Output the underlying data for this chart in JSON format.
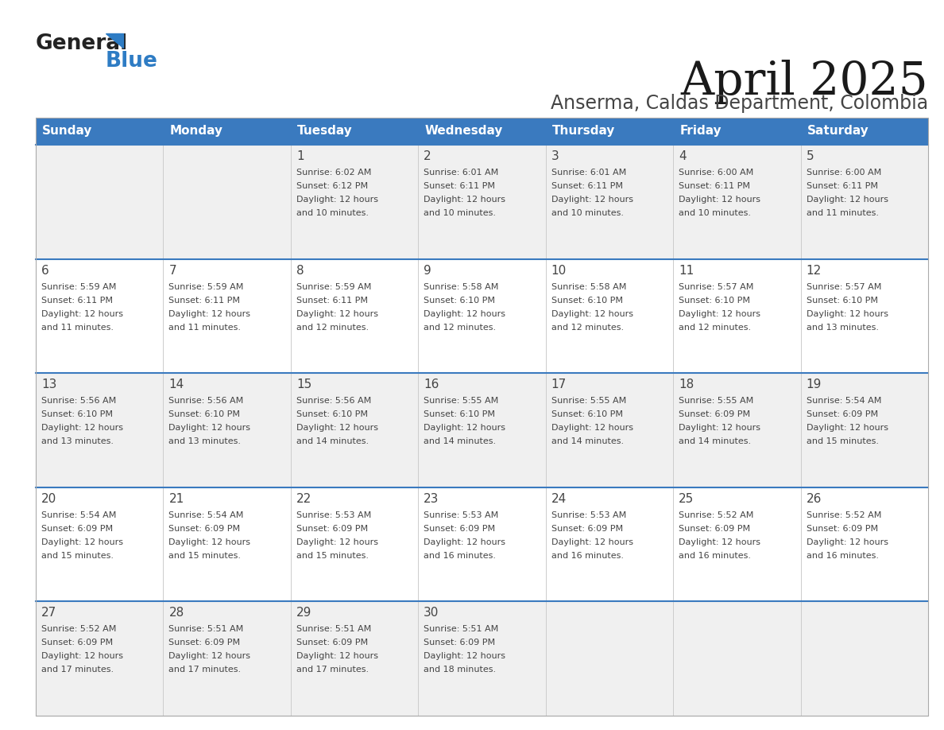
{
  "title": "April 2025",
  "subtitle": "Anserma, Caldas Department, Colombia",
  "days_of_week": [
    "Sunday",
    "Monday",
    "Tuesday",
    "Wednesday",
    "Thursday",
    "Friday",
    "Saturday"
  ],
  "header_bg": "#3a7abf",
  "header_text_color": "#ffffff",
  "row_bg_even": "#f0f0f0",
  "row_bg_odd": "#ffffff",
  "text_color": "#444444",
  "divider_color": "#3a7abf",
  "logo_general_color": "#222222",
  "logo_blue_color": "#2e7cc4",
  "weeks": [
    {
      "days": [
        {
          "date": "",
          "sunrise": "",
          "sunset": "",
          "daylight_hours": 0,
          "daylight_minutes": 0
        },
        {
          "date": "",
          "sunrise": "",
          "sunset": "",
          "daylight_hours": 0,
          "daylight_minutes": 0
        },
        {
          "date": "1",
          "sunrise": "6:02 AM",
          "sunset": "6:12 PM",
          "daylight_hours": 12,
          "daylight_minutes": 10
        },
        {
          "date": "2",
          "sunrise": "6:01 AM",
          "sunset": "6:11 PM",
          "daylight_hours": 12,
          "daylight_minutes": 10
        },
        {
          "date": "3",
          "sunrise": "6:01 AM",
          "sunset": "6:11 PM",
          "daylight_hours": 12,
          "daylight_minutes": 10
        },
        {
          "date": "4",
          "sunrise": "6:00 AM",
          "sunset": "6:11 PM",
          "daylight_hours": 12,
          "daylight_minutes": 10
        },
        {
          "date": "5",
          "sunrise": "6:00 AM",
          "sunset": "6:11 PM",
          "daylight_hours": 12,
          "daylight_minutes": 11
        }
      ]
    },
    {
      "days": [
        {
          "date": "6",
          "sunrise": "5:59 AM",
          "sunset": "6:11 PM",
          "daylight_hours": 12,
          "daylight_minutes": 11
        },
        {
          "date": "7",
          "sunrise": "5:59 AM",
          "sunset": "6:11 PM",
          "daylight_hours": 12,
          "daylight_minutes": 11
        },
        {
          "date": "8",
          "sunrise": "5:59 AM",
          "sunset": "6:11 PM",
          "daylight_hours": 12,
          "daylight_minutes": 12
        },
        {
          "date": "9",
          "sunrise": "5:58 AM",
          "sunset": "6:10 PM",
          "daylight_hours": 12,
          "daylight_minutes": 12
        },
        {
          "date": "10",
          "sunrise": "5:58 AM",
          "sunset": "6:10 PM",
          "daylight_hours": 12,
          "daylight_minutes": 12
        },
        {
          "date": "11",
          "sunrise": "5:57 AM",
          "sunset": "6:10 PM",
          "daylight_hours": 12,
          "daylight_minutes": 12
        },
        {
          "date": "12",
          "sunrise": "5:57 AM",
          "sunset": "6:10 PM",
          "daylight_hours": 12,
          "daylight_minutes": 13
        }
      ]
    },
    {
      "days": [
        {
          "date": "13",
          "sunrise": "5:56 AM",
          "sunset": "6:10 PM",
          "daylight_hours": 12,
          "daylight_minutes": 13
        },
        {
          "date": "14",
          "sunrise": "5:56 AM",
          "sunset": "6:10 PM",
          "daylight_hours": 12,
          "daylight_minutes": 13
        },
        {
          "date": "15",
          "sunrise": "5:56 AM",
          "sunset": "6:10 PM",
          "daylight_hours": 12,
          "daylight_minutes": 14
        },
        {
          "date": "16",
          "sunrise": "5:55 AM",
          "sunset": "6:10 PM",
          "daylight_hours": 12,
          "daylight_minutes": 14
        },
        {
          "date": "17",
          "sunrise": "5:55 AM",
          "sunset": "6:10 PM",
          "daylight_hours": 12,
          "daylight_minutes": 14
        },
        {
          "date": "18",
          "sunrise": "5:55 AM",
          "sunset": "6:09 PM",
          "daylight_hours": 12,
          "daylight_minutes": 14
        },
        {
          "date": "19",
          "sunrise": "5:54 AM",
          "sunset": "6:09 PM",
          "daylight_hours": 12,
          "daylight_minutes": 15
        }
      ]
    },
    {
      "days": [
        {
          "date": "20",
          "sunrise": "5:54 AM",
          "sunset": "6:09 PM",
          "daylight_hours": 12,
          "daylight_minutes": 15
        },
        {
          "date": "21",
          "sunrise": "5:54 AM",
          "sunset": "6:09 PM",
          "daylight_hours": 12,
          "daylight_minutes": 15
        },
        {
          "date": "22",
          "sunrise": "5:53 AM",
          "sunset": "6:09 PM",
          "daylight_hours": 12,
          "daylight_minutes": 15
        },
        {
          "date": "23",
          "sunrise": "5:53 AM",
          "sunset": "6:09 PM",
          "daylight_hours": 12,
          "daylight_minutes": 16
        },
        {
          "date": "24",
          "sunrise": "5:53 AM",
          "sunset": "6:09 PM",
          "daylight_hours": 12,
          "daylight_minutes": 16
        },
        {
          "date": "25",
          "sunrise": "5:52 AM",
          "sunset": "6:09 PM",
          "daylight_hours": 12,
          "daylight_minutes": 16
        },
        {
          "date": "26",
          "sunrise": "5:52 AM",
          "sunset": "6:09 PM",
          "daylight_hours": 12,
          "daylight_minutes": 16
        }
      ]
    },
    {
      "days": [
        {
          "date": "27",
          "sunrise": "5:52 AM",
          "sunset": "6:09 PM",
          "daylight_hours": 12,
          "daylight_minutes": 17
        },
        {
          "date": "28",
          "sunrise": "5:51 AM",
          "sunset": "6:09 PM",
          "daylight_hours": 12,
          "daylight_minutes": 17
        },
        {
          "date": "29",
          "sunrise": "5:51 AM",
          "sunset": "6:09 PM",
          "daylight_hours": 12,
          "daylight_minutes": 17
        },
        {
          "date": "30",
          "sunrise": "5:51 AM",
          "sunset": "6:09 PM",
          "daylight_hours": 12,
          "daylight_minutes": 18
        },
        {
          "date": "",
          "sunrise": "",
          "sunset": "",
          "daylight_hours": 0,
          "daylight_minutes": 0
        },
        {
          "date": "",
          "sunrise": "",
          "sunset": "",
          "daylight_hours": 0,
          "daylight_minutes": 0
        },
        {
          "date": "",
          "sunrise": "",
          "sunset": "",
          "daylight_hours": 0,
          "daylight_minutes": 0
        }
      ]
    }
  ]
}
